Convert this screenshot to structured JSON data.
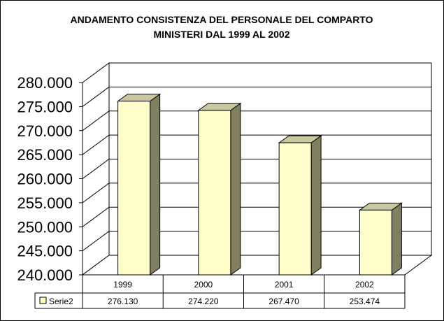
{
  "chart_data": {
    "type": "bar",
    "title_lines": [
      "ANDAMENTO CONSISTENZA DEL PERSONALE DEL COMPARTO",
      "MINISTERI DAL 1999 AL 2002"
    ],
    "categories": [
      "1999",
      "2000",
      "2001",
      "2002"
    ],
    "series": [
      {
        "name": "Serie2",
        "values": [
          276130,
          274220,
          267470,
          253474
        ],
        "labels": [
          "276.130",
          "274.220",
          "267.470",
          "253.474"
        ],
        "color": "#ffffcc"
      }
    ],
    "ylim": [
      240000,
      280000
    ],
    "ytick_step": 5000,
    "ytick_labels": [
      "240.000",
      "245.000",
      "250.000",
      "255.000",
      "260.000",
      "265.000",
      "270.000",
      "275.000",
      "280.000"
    ],
    "grid": true,
    "legend": "data-table",
    "colors": {
      "bar_front": "#ffffcc",
      "bar_side": "#808060",
      "bar_top": "#c8c8a0",
      "wall": "#ffffff",
      "gridline": "#000000"
    }
  }
}
